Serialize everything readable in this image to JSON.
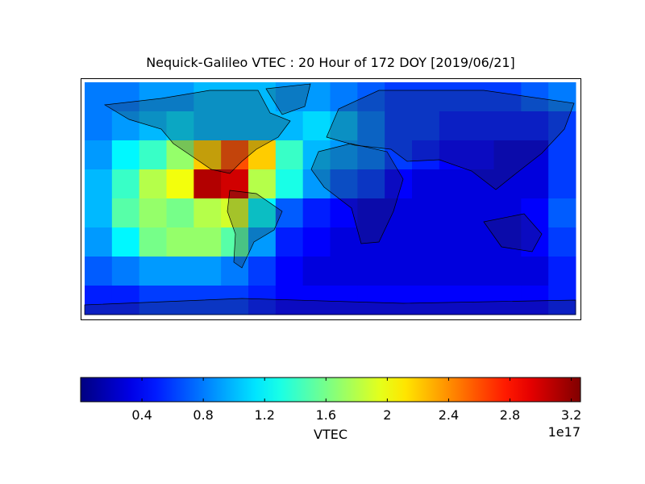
{
  "chart_data": {
    "type": "heatmap",
    "title": "Nequick-Galileo VTEC : 20 Hour of 172 DOY [2019/06/21]",
    "colormap": "jet",
    "values": [
      [
        0.8,
        0.8,
        0.9,
        0.9,
        1.0,
        1.0,
        1.0,
        0.9,
        0.9,
        0.8,
        0.7,
        0.6,
        0.6,
        0.6,
        0.6,
        0.6,
        0.7,
        0.8
      ],
      [
        0.8,
        0.9,
        1.0,
        1.1,
        1.0,
        1.0,
        1.0,
        1.0,
        1.1,
        1.0,
        0.8,
        0.6,
        0.6,
        0.5,
        0.5,
        0.5,
        0.5,
        0.6
      ],
      [
        0.9,
        1.2,
        1.4,
        1.7,
        2.2,
        2.6,
        2.2,
        1.4,
        1.0,
        0.9,
        0.8,
        0.6,
        0.5,
        0.4,
        0.4,
        0.3,
        0.3,
        0.6
      ],
      [
        1.0,
        1.4,
        1.8,
        2.0,
        3.1,
        3.0,
        1.8,
        1.3,
        0.9,
        0.7,
        0.6,
        0.4,
        0.3,
        0.3,
        0.3,
        0.3,
        0.3,
        0.6
      ],
      [
        1.0,
        1.5,
        1.7,
        1.6,
        1.8,
        1.9,
        1.2,
        0.7,
        0.5,
        0.4,
        0.3,
        0.3,
        0.3,
        0.3,
        0.3,
        0.3,
        0.4,
        0.7
      ],
      [
        0.9,
        1.2,
        1.6,
        1.7,
        1.7,
        1.5,
        0.9,
        0.5,
        0.4,
        0.3,
        0.3,
        0.3,
        0.3,
        0.3,
        0.3,
        0.3,
        0.4,
        0.6
      ],
      [
        0.7,
        0.8,
        0.9,
        0.9,
        0.9,
        0.8,
        0.6,
        0.4,
        0.3,
        0.3,
        0.3,
        0.3,
        0.3,
        0.3,
        0.3,
        0.3,
        0.3,
        0.5
      ],
      [
        0.5,
        0.5,
        0.6,
        0.6,
        0.6,
        0.6,
        0.5,
        0.4,
        0.4,
        0.4,
        0.4,
        0.4,
        0.4,
        0.4,
        0.4,
        0.4,
        0.4,
        0.5
      ]
    ],
    "colorbar": {
      "label": "VTEC",
      "offset_label": "1e17",
      "clim": [
        0,
        3.26
      ],
      "ticks": [
        0.4,
        0.8,
        1.2,
        1.6,
        2.0,
        2.4,
        2.8,
        3.2
      ]
    }
  }
}
